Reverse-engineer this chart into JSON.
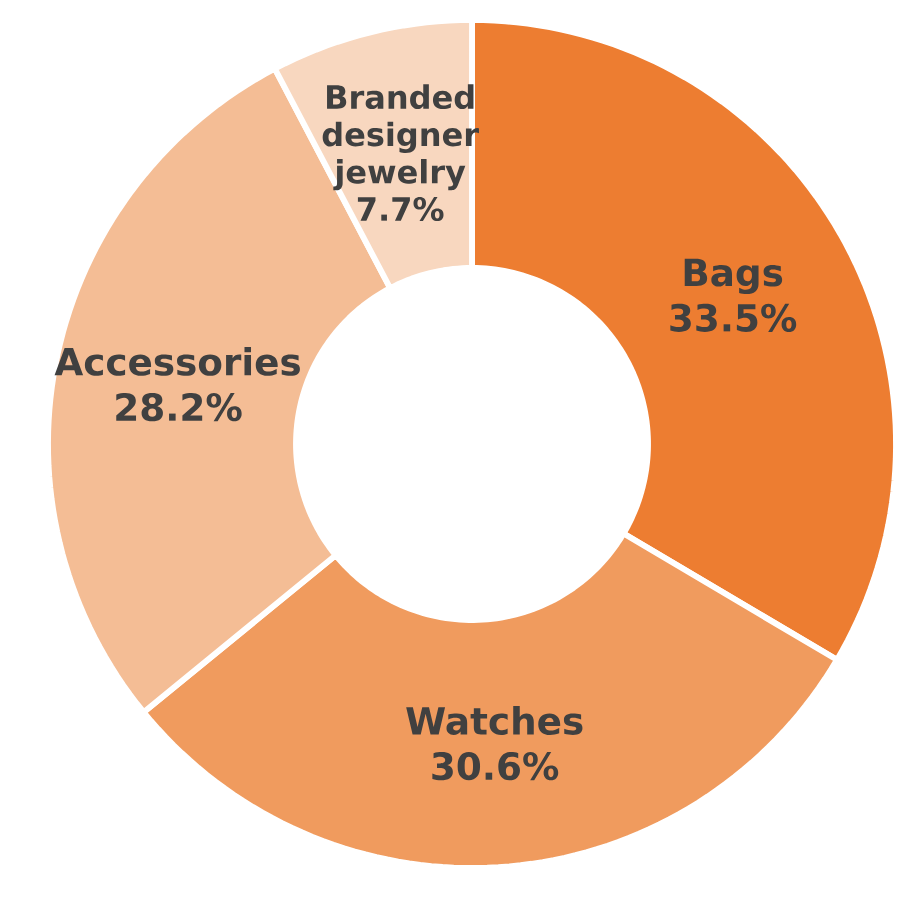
{
  "chart_data": {
    "type": "donut",
    "categories": [
      "Bags",
      "Watches",
      "Accessories",
      "Branded designer jewelry"
    ],
    "values": [
      33.5,
      30.6,
      28.2,
      7.7
    ],
    "value_labels": [
      "33.5%",
      "30.6%",
      "28.2%",
      "7.7%"
    ],
    "colors": [
      "#ed7d31",
      "#f09b5e",
      "#f4bd95",
      "#f8d7bf"
    ]
  }
}
